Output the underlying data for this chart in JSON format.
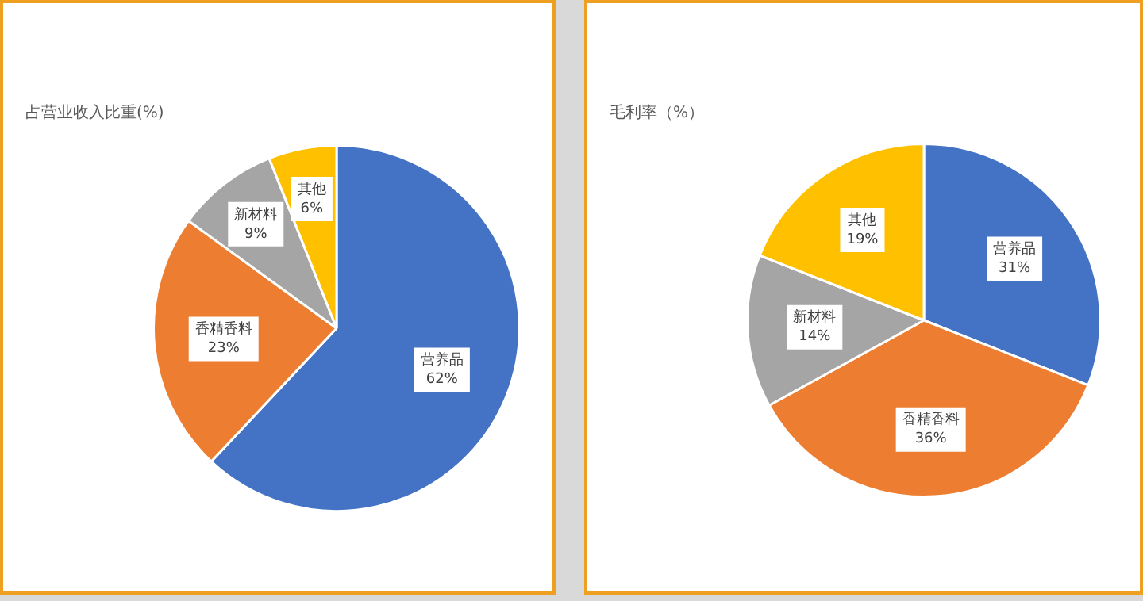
{
  "chart_data": [
    {
      "type": "pie",
      "title": "占营业收入比重(%)",
      "categories": [
        "营养品",
        "香精香料",
        "新材料",
        "其他"
      ],
      "values": [
        62,
        23,
        9,
        6
      ],
      "colors": [
        "#4472c4",
        "#ed7d31",
        "#a5a5a5",
        "#ffc000"
      ],
      "value_labels": [
        "62%",
        "23%",
        "9%",
        "6%"
      ],
      "legend": false
    },
    {
      "type": "pie",
      "title": "毛利率（%）",
      "categories": [
        "营养品",
        "香精香料",
        "新材料",
        "其他"
      ],
      "values": [
        31,
        36,
        14,
        19
      ],
      "colors": [
        "#4472c4",
        "#ed7d31",
        "#a5a5a5",
        "#ffc000"
      ],
      "value_labels": [
        "31%",
        "36%",
        "14%",
        "19%"
      ],
      "legend": false
    }
  ]
}
